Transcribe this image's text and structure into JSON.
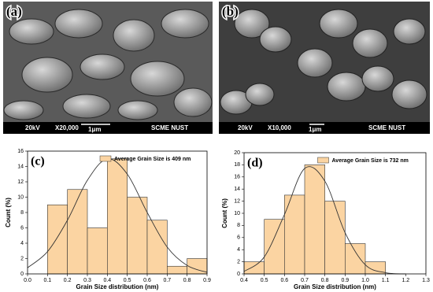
{
  "images": [
    {
      "label": "(a)",
      "info": [
        "20kV",
        "X20,000",
        "1μm",
        "SCME NUST"
      ]
    },
    {
      "label": "(b)",
      "info": [
        "20kV",
        "X10,000",
        "1μm",
        "SCME NUST"
      ]
    }
  ],
  "chart_data": [
    {
      "type": "histogram",
      "label": "(c)",
      "legend": "Average Grain Size is 409 nm",
      "x_label": "Grain Size distribution (nm)",
      "y_label": "Count (%)",
      "bins": [
        0.1,
        0.2,
        0.3,
        0.4,
        0.5,
        0.6,
        0.7,
        0.8,
        0.9
      ],
      "values": [
        9,
        11,
        6,
        15,
        10,
        7,
        1,
        2
      ],
      "color": "#fbd4a2",
      "edge_color": "#333333",
      "fit": {
        "x": [
          0,
          0.1,
          0.2,
          0.3,
          0.4,
          0.5,
          0.6,
          0.7,
          0.8,
          0.9
        ],
        "values": [
          0.8,
          2.9,
          7.0,
          12.2,
          15.0,
          13.0,
          8.0,
          3.5,
          1.1,
          0.2
        ],
        "color": "#333333"
      },
      "xlim": [
        0,
        0.9
      ],
      "ylim": [
        0,
        16
      ],
      "xticks": [
        {
          "value": 0,
          "label": "0.0"
        },
        0.1,
        0.2,
        0.3,
        0.4,
        0.5,
        0.6,
        0.7,
        0.8,
        0.9
      ],
      "yticks": [
        0,
        2,
        4,
        6,
        8,
        10,
        12,
        14,
        16
      ]
    },
    {
      "type": "histogram",
      "label": "(d)",
      "legend": "Average Grain Size is 732 nm",
      "x_label": "Grain Size distribution (nm)",
      "y_label": "Count (%)",
      "bins": [
        0.4,
        0.5,
        0.6,
        0.7,
        0.8,
        0.9,
        1.0,
        1.1
      ],
      "values": [
        2,
        9,
        13,
        18,
        12,
        5,
        2
      ],
      "color": "#fbd4a2",
      "edge_color": "#333333",
      "fit": {
        "x": [
          0.4,
          0.5,
          0.6,
          0.7,
          0.8,
          0.9,
          1.0,
          1.1,
          1.2
        ],
        "values": [
          0.4,
          2.8,
          9.8,
          17.4,
          15.3,
          6.8,
          1.5,
          0.2,
          0
        ],
        "color": "#333333"
      },
      "xlim": [
        0.4,
        1.3
      ],
      "ylim": [
        0,
        20
      ],
      "xticks": [
        0.4,
        0.5,
        0.6,
        0.7,
        0.8,
        0.9,
        {
          "value": 1,
          "label": "1.0"
        },
        1.1,
        1.2,
        1.3
      ],
      "yticks": [
        0,
        2,
        4,
        6,
        8,
        10,
        12,
        14,
        16,
        18,
        20
      ]
    }
  ]
}
